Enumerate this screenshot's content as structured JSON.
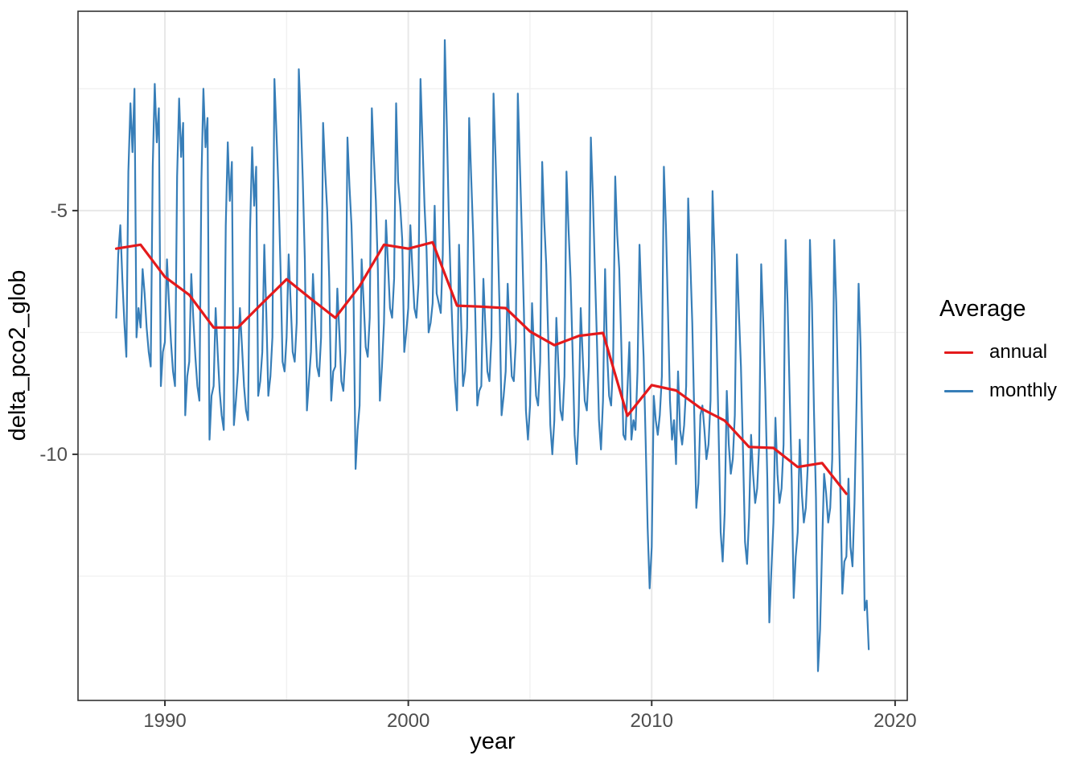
{
  "figure": {
    "background": "#ffffff"
  },
  "panel": {
    "background": "#ffffff",
    "border_color": "#333333",
    "grid_major_color": "#e8e8e8",
    "grid_minor_color": "#f1f1f1",
    "tick_color": "#333333",
    "tick_label_color": "#4d4d4d"
  },
  "legend": {
    "title": "Average",
    "entries": [
      {
        "label": "annual",
        "color": "#e41a1c"
      },
      {
        "label": "monthly",
        "color": "#377eb8"
      }
    ]
  },
  "chart_data": {
    "type": "line",
    "title": "",
    "xlabel": "year",
    "ylabel": "delta_pco2_glob",
    "x_range": [
      1986.43,
      2020.5
    ],
    "y_range": [
      -15.05,
      -0.91
    ],
    "x_major_ticks": [
      1990,
      2000,
      2010,
      2020
    ],
    "x_minor_ticks": [
      1995,
      2005,
      2015
    ],
    "y_major_ticks": [
      -5,
      -10
    ],
    "y_minor_ticks": [
      -2.5,
      -7.5,
      -12.5
    ],
    "grid": true,
    "legend_position": "right",
    "series": [
      {
        "name": "annual",
        "color": "#e41a1c",
        "line_width": 3.2,
        "start_year": 1988,
        "frequency": 1,
        "values": [
          -5.78,
          -5.7,
          -6.36,
          -6.73,
          -7.4,
          -7.4,
          -6.9,
          -6.41,
          -6.81,
          -7.2,
          -6.55,
          -5.7,
          -5.78,
          -5.65,
          -6.95,
          -6.97,
          -7.0,
          -7.48,
          -7.76,
          -7.57,
          -7.51,
          -9.21,
          -8.58,
          -8.69,
          -9.05,
          -9.31,
          -9.85,
          -9.87,
          -10.26,
          -10.18,
          -10.81
        ]
      },
      {
        "name": "monthly",
        "color": "#377eb8",
        "line_width": 2.2,
        "start_year": 1988,
        "frequency": 12,
        "values_by_year": [
          [
            -7.2,
            -5.9,
            -5.3,
            -6.4,
            -7.3,
            -8.0,
            -4.2,
            -2.8,
            -3.8,
            -2.5,
            -7.6,
            -7.0
          ],
          [
            -7.4,
            -6.2,
            -6.7,
            -7.4,
            -7.9,
            -8.2,
            -4.1,
            -2.4,
            -3.6,
            -2.9,
            -8.6,
            -7.9
          ],
          [
            -7.7,
            -6.0,
            -6.9,
            -7.7,
            -8.3,
            -8.6,
            -4.3,
            -2.7,
            -3.9,
            -3.2,
            -9.2,
            -8.4
          ],
          [
            -8.1,
            -6.3,
            -7.2,
            -8.0,
            -8.6,
            -8.9,
            -4.4,
            -2.5,
            -3.7,
            -3.1,
            -9.7,
            -8.8
          ],
          [
            -8.6,
            -7.0,
            -7.9,
            -8.7,
            -9.2,
            -9.5,
            -5.3,
            -3.6,
            -4.8,
            -4.0,
            -9.4,
            -8.9
          ],
          [
            -8.3,
            -7.0,
            -7.8,
            -8.6,
            -9.1,
            -9.3,
            -5.4,
            -3.7,
            -4.9,
            -4.1,
            -8.8,
            -8.5
          ],
          [
            -7.9,
            -5.7,
            -7.1,
            -8.8,
            -8.4,
            -7.6,
            -2.3,
            -3.4,
            -4.6,
            -6.2,
            -8.1,
            -8.3
          ],
          [
            -7.6,
            -5.9,
            -6.9,
            -7.9,
            -8.1,
            -7.3,
            -2.1,
            -3.1,
            -4.4,
            -6.0,
            -9.1,
            -8.5
          ],
          [
            -7.9,
            -6.3,
            -7.2,
            -8.2,
            -8.4,
            -7.6,
            -3.2,
            -4.2,
            -5.0,
            -6.4,
            -8.9,
            -8.3
          ],
          [
            -8.2,
            -6.6,
            -7.5,
            -8.5,
            -8.7,
            -7.9,
            -3.5,
            -4.5,
            -5.3,
            -6.8,
            -10.3,
            -9.5
          ],
          [
            -9.0,
            -6.0,
            -6.9,
            -7.8,
            -8.0,
            -7.2,
            -2.9,
            -3.9,
            -4.8,
            -6.2,
            -8.9,
            -8.2
          ],
          [
            -7.3,
            -5.2,
            -6.1,
            -7.0,
            -7.2,
            -6.4,
            -2.8,
            -4.4,
            -4.9,
            -5.6,
            -7.9,
            -7.5
          ],
          [
            -7.0,
            -5.3,
            -6.2,
            -7.0,
            -7.2,
            -6.5,
            -2.3,
            -3.6,
            -4.9,
            -5.8,
            -7.5,
            -7.3
          ],
          [
            -6.9,
            -4.9,
            -6.7,
            -6.9,
            -7.1,
            -5.9,
            -1.5,
            -3.3,
            -5.2,
            -6.6,
            -7.7,
            -8.5
          ],
          [
            -9.1,
            -5.7,
            -7.2,
            -8.6,
            -8.3,
            -7.4,
            -3.1,
            -4.3,
            -5.5,
            -7.1,
            -9.0,
            -8.7
          ],
          [
            -8.6,
            -6.4,
            -7.4,
            -8.3,
            -8.5,
            -7.6,
            -2.6,
            -3.9,
            -5.4,
            -7.0,
            -9.2,
            -8.8
          ],
          [
            -8.3,
            -6.5,
            -7.5,
            -8.4,
            -8.5,
            -7.7,
            -2.6,
            -4.0,
            -5.5,
            -7.1,
            -9.1,
            -9.7
          ],
          [
            -9.0,
            -6.9,
            -7.9,
            -8.8,
            -9.0,
            -8.1,
            -4.0,
            -5.2,
            -6.1,
            -7.6,
            -9.4,
            -10.0
          ],
          [
            -9.3,
            -7.2,
            -8.2,
            -9.1,
            -9.3,
            -8.4,
            -4.2,
            -5.4,
            -6.4,
            -7.9,
            -9.6,
            -10.2
          ],
          [
            -9.2,
            -7.0,
            -8.0,
            -8.9,
            -9.1,
            -8.2,
            -3.5,
            -4.7,
            -6.2,
            -7.7,
            -9.3,
            -9.9
          ],
          [
            -8.9,
            -6.2,
            -7.9,
            -8.8,
            -9.0,
            -8.1,
            -4.3,
            -5.5,
            -6.2,
            -7.7,
            -9.6,
            -9.7
          ],
          [
            -8.7,
            -7.7,
            -9.7,
            -9.3,
            -9.5,
            -8.3,
            -5.7,
            -6.9,
            -8.0,
            -9.7,
            -11.5,
            -12.75
          ],
          [
            -11.9,
            -8.8,
            -9.3,
            -9.6,
            -9.2,
            -8.4,
            -4.1,
            -5.3,
            -7.0,
            -8.9,
            -9.7,
            -9.3
          ],
          [
            -10.2,
            -8.3,
            -9.5,
            -9.8,
            -9.4,
            -8.6,
            -4.75,
            -6.0,
            -7.3,
            -9.2,
            -11.1,
            -10.6
          ],
          [
            -9.2,
            -9.0,
            -9.5,
            -10.1,
            -9.8,
            -8.9,
            -4.6,
            -5.9,
            -7.6,
            -9.6,
            -11.6,
            -12.2
          ],
          [
            -11.2,
            -8.7,
            -9.8,
            -10.4,
            -10.1,
            -9.2,
            -5.9,
            -7.1,
            -8.2,
            -9.9,
            -11.8,
            -12.25
          ],
          [
            -11.3,
            -9.6,
            -10.4,
            -11.0,
            -10.7,
            -9.8,
            -6.1,
            -7.3,
            -8.7,
            -10.5,
            -13.45,
            -12.4
          ],
          [
            -11.4,
            -9.25,
            -10.4,
            -11.0,
            -10.7,
            -9.8,
            -5.6,
            -6.9,
            -8.7,
            -10.5,
            -12.95,
            -12.1
          ],
          [
            -11.6,
            -9.7,
            -10.8,
            -11.4,
            -11.1,
            -10.2,
            -5.6,
            -6.9,
            -9.1,
            -10.9,
            -14.45,
            -13.6
          ],
          [
            -11.9,
            -10.4,
            -10.8,
            -11.4,
            -11.1,
            -10.1,
            -5.6,
            -6.9,
            -9.0,
            -10.8,
            -12.86,
            -12.2
          ],
          [
            -12.1,
            -10.5,
            -11.9,
            -12.3,
            -11.0,
            -8.9,
            -6.5,
            -7.8,
            -10.2,
            -13.2,
            -13.0,
            -14.0
          ]
        ]
      }
    ]
  }
}
